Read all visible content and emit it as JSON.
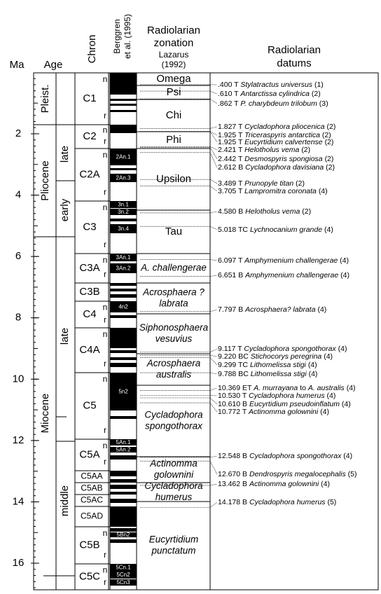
{
  "header": {
    "ma": "Ma",
    "age": "Age",
    "chron": "Chron",
    "berggren": [
      "Berggren",
      "et al. (1995)"
    ],
    "zonation": [
      "Radiolarian",
      "zonation"
    ],
    "lazarus": [
      "Lazarus",
      "(1992)"
    ],
    "datums": [
      "Radiolarian",
      "datums"
    ]
  },
  "ma_ticks": [
    2,
    4,
    6,
    8,
    10,
    12,
    14,
    16
  ],
  "epochs": [
    "Pleist.",
    "Pliocene",
    "Miocene"
  ],
  "subepochs": [
    "late",
    "early",
    "late",
    "middle"
  ],
  "chrons": [
    {
      "name": "C1",
      "polarity": [
        "n",
        "r"
      ]
    },
    {
      "name": "C2",
      "polarity": [
        "n",
        "r"
      ]
    },
    {
      "name": "C2A",
      "polarity": [
        "n",
        "r"
      ]
    },
    {
      "name": "C3",
      "polarity": [
        "n",
        "r"
      ]
    },
    {
      "name": "C3A",
      "polarity": [
        "n",
        "r"
      ]
    },
    {
      "name": "C3B",
      "polarity": []
    },
    {
      "name": "C4",
      "polarity": [
        "n",
        "r"
      ]
    },
    {
      "name": "C4A",
      "polarity": [
        "n",
        "r"
      ]
    },
    {
      "name": "C5",
      "polarity": [
        "n",
        "r"
      ]
    },
    {
      "name": "C5A",
      "polarity": [
        "n",
        "r"
      ]
    },
    {
      "name": "C5AA",
      "polarity": []
    },
    {
      "name": "C5AB",
      "polarity": []
    },
    {
      "name": "C5AC",
      "polarity": []
    },
    {
      "name": "C5AD",
      "polarity": []
    },
    {
      "name": "C5B",
      "polarity": [
        "n",
        "r"
      ]
    },
    {
      "name": "C5C",
      "polarity": [
        "n",
        "r"
      ]
    }
  ],
  "magnetic_labels": [
    "2An.1",
    "2An.3",
    "3n.1",
    "3n.2",
    "3n.4",
    "3An.1",
    "3An.2",
    "4n2",
    "5n2",
    "5An.1",
    "5An.2",
    "5Bn2",
    "5Cn.1",
    "5Cn2",
    "5Cn3"
  ],
  "zones": [
    {
      "lines": [
        "Omega"
      ],
      "italic": false
    },
    {
      "lines": [
        "Psi"
      ],
      "italic": false
    },
    {
      "lines": [
        "Chi"
      ],
      "italic": false
    },
    {
      "lines": [
        "Phi"
      ],
      "italic": false
    },
    {
      "lines": [
        "Upsilon"
      ],
      "italic": false
    },
    {
      "lines": [
        "Tau"
      ],
      "italic": false
    },
    {
      "lines": [
        "A. challengerae"
      ],
      "italic": true
    },
    {
      "lines": [
        "Acrosphaera ?",
        "labrata"
      ],
      "italic": true
    },
    {
      "lines": [
        "Siphonosphaera",
        "vesuvius"
      ],
      "italic": true
    },
    {
      "lines": [
        "Acrosphaera",
        "australis"
      ],
      "italic": true
    },
    {
      "lines": [
        "Cycladophora",
        "spongothorax"
      ],
      "italic": true
    },
    {
      "lines": [
        "Actinomma",
        "golownini"
      ],
      "italic": true
    },
    {
      "lines": [
        "Cycladophora",
        "humerus"
      ],
      "italic": true
    },
    {
      "lines": [
        "Eucyrtidium",
        "punctatum"
      ],
      "italic": true
    }
  ],
  "datums": [
    {
      "age": ".400",
      "event": "T",
      "taxon": "Stylatractus universus",
      "ref": "(1)"
    },
    {
      "age": ".610",
      "event": "T",
      "taxon": "Antarctissa cylindrica",
      "ref": "(2)"
    },
    {
      "age": ".862",
      "event": "T",
      "taxon": "P. charybdeum trilobum",
      "ref": "(3)"
    },
    {
      "age": "1.827",
      "event": "T",
      "taxon": "Cycladophora pliocenica",
      "ref": "(2)"
    },
    {
      "age": "1.925",
      "event": "T",
      "taxon": "Triceraspyris antarctica",
      "ref": "(2)"
    },
    {
      "age": "1.925",
      "event": "T",
      "taxon": "Eucyrtidium calvertense",
      "ref": "(2)"
    },
    {
      "age": "2.421",
      "event": "T",
      "taxon": "Helotholus vema",
      "ref": "(2)"
    },
    {
      "age": "2.442",
      "event": "T",
      "taxon": "Desmospyris spongiosa",
      "ref": "(2)"
    },
    {
      "age": "2.612",
      "event": "B",
      "taxon": "Cycladophora davisiana",
      "ref": "(2)"
    },
    {
      "age": "3.489",
      "event": "T",
      "taxon": "Prunopyle titan",
      "ref": "(2)"
    },
    {
      "age": "3.705",
      "event": "T",
      "taxon": "Lampromitra coronata",
      "ref": "(4)"
    },
    {
      "age": "4.580",
      "event": "B",
      "taxon": "Helotholus vema",
      "ref": "(2)"
    },
    {
      "age": "5.018",
      "event": "TC",
      "taxon": "Lychnocanium grande",
      "ref": "(4)"
    },
    {
      "age": "6.097",
      "event": "T",
      "taxon": "Amphymenium challengerae",
      "ref": "(4)"
    },
    {
      "age": "6.651",
      "event": "B",
      "taxon": "Amphymenium challengerae",
      "ref": "(4)"
    },
    {
      "age": "7.797",
      "event": "B",
      "taxon": "Acrosphaera? labrata",
      "ref": "(4)"
    },
    {
      "age": "9.117",
      "event": "T",
      "taxon": "Cycladophora spongothorax",
      "ref": "(4)"
    },
    {
      "age": "9.220",
      "event": "BC",
      "taxon": "Stichocorys peregrina",
      "ref": "(4)"
    },
    {
      "age": "9.299",
      "event": "TC",
      "taxon": "Lithomelissa stigi",
      "ref": "(4)"
    },
    {
      "age": "9.788",
      "event": "BC",
      "taxon": "Lithomelissa stigi",
      "ref": "(4)"
    },
    {
      "age": "10.369",
      "event": "ET",
      "taxon": "A. murrayana",
      "connector": "to",
      "taxon2": "A. australis",
      "ref": "(4)"
    },
    {
      "age": "10.530",
      "event": "T",
      "taxon": "Cycladophora humerus",
      "ref": "(4)"
    },
    {
      "age": "10.610",
      "event": "B",
      "taxon": "Eucyrtidium pseudoinflatum",
      "ref": "(4)"
    },
    {
      "age": "10.772",
      "event": "T",
      "taxon": "Actinomma golownini",
      "ref": "(4)"
    },
    {
      "age": "12.548",
      "event": "B",
      "taxon": "Cycladophora spongothorax",
      "ref": "(4)"
    },
    {
      "age": "12.670",
      "event": "B",
      "taxon": "Dendrospyris megalocephalis",
      "ref": "(5)"
    },
    {
      "age": "13.462",
      "event": "B",
      "taxon": "Actinomma golownini",
      "ref": "(4)"
    },
    {
      "age": "14.178",
      "event": "B",
      "taxon": "Cycladophora humerus",
      "ref": "(5)"
    }
  ]
}
